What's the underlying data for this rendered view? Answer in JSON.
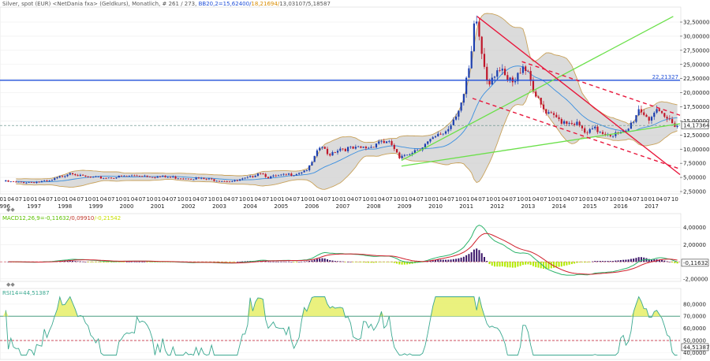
{
  "header": {
    "title": "Silver, spot (EUR) <NetDania fxa> (Geldkurs), Monatlich, # 261 / 273, ",
    "bb_label": "BB20,2=",
    "bb_mid": "15,62400",
    "bb_sep1": "/",
    "bb_upper": "18,21694",
    "bb_sep2": "/",
    "bb_lower": "13,03107",
    "bb_width": "/5,18587"
  },
  "colors": {
    "price_up": "#1c3fb0",
    "price_down": "#c0172a",
    "band_fill": "#cfcfcf",
    "band_edge": "#c9a25a",
    "ma": "#3a8fe0",
    "hline": "#1f4fd8",
    "trend_green": "#6be04a",
    "trend_red": "#e8173c",
    "rsi": "#3aa890",
    "macd": "#2bb36a",
    "signal": "#d0202c",
    "hist_pos": "#3a1468",
    "hist_neg": "#b3ea00"
  },
  "chart_data": [
    {
      "type": "candlestick",
      "title": "Silver, spot (EUR)",
      "y_ticks": [
        "32,50000",
        "30,00000",
        "27,50000",
        "25,00000",
        "22,50000",
        "20,00000",
        "17,50000",
        "15,00000",
        "12,50000",
        "10,00000",
        "7,50000",
        "5,00000",
        "2,50000"
      ],
      "ylim": [
        2.5,
        32.5
      ],
      "x_month_labels": [
        "01",
        "04",
        "07",
        "10"
      ],
      "x_years": [
        "1996",
        "1997",
        "1998",
        "1999",
        "2000",
        "2001",
        "2002",
        "2003",
        "2004",
        "2005",
        "2006",
        "2007",
        "2008",
        "2009",
        "2010",
        "2011",
        "2012",
        "2013",
        "2014",
        "2015",
        "2016",
        "2017"
      ],
      "horizontal_level": {
        "value": 22.2,
        "label": "22,21327"
      },
      "last_price": {
        "value": 14.2,
        "label": "14,17364"
      },
      "yearly_close": [
        [
          1996,
          4.1
        ],
        [
          1997,
          4.3
        ],
        [
          1998,
          5.2
        ],
        [
          1999,
          4.8
        ],
        [
          2000,
          5.1
        ],
        [
          2001,
          4.9
        ],
        [
          2002,
          4.6
        ],
        [
          2003,
          4.5
        ],
        [
          2004,
          5.3
        ],
        [
          2005,
          6.2
        ],
        [
          2006,
          9.8
        ],
        [
          2007,
          10.2
        ],
        [
          2008,
          11.0
        ],
        [
          2009,
          10.5
        ],
        [
          2010,
          14.5
        ],
        [
          2011,
          26.5
        ],
        [
          2012,
          23.0
        ],
        [
          2013,
          19.5
        ],
        [
          2014,
          14.0
        ],
        [
          2015,
          13.5
        ],
        [
          2016,
          14.8
        ],
        [
          2017,
          16.0
        ]
      ]
    },
    {
      "type": "line",
      "title": "MACD",
      "label": "MACD12,26,9=",
      "macd_value": "-0,11632",
      "signal_value": "/0,09910",
      "hist_value": "/-0,21542",
      "y_ticks": [
        "4,00000",
        "2,00000",
        "-0,11632",
        "-2,00000"
      ],
      "ylim": [
        -2.2,
        4.8
      ]
    },
    {
      "type": "line",
      "title": "RSI",
      "label": "RSI14=44,51387",
      "value_label": "44,51387",
      "y_ticks": [
        "80,0000",
        "70,0000",
        "60,0000",
        "50,0000",
        "40,0000"
      ],
      "ylim": [
        37,
        87
      ],
      "levels": [
        70,
        50
      ]
    }
  ]
}
